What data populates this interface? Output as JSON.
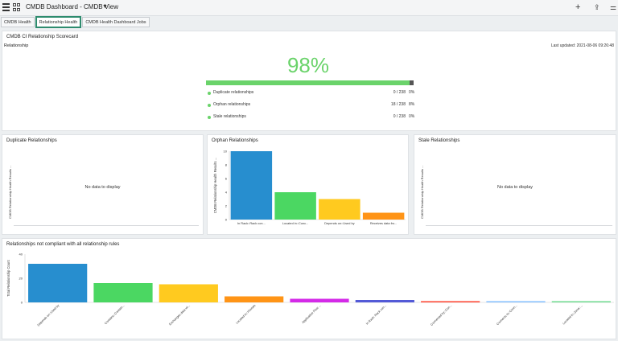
{
  "header": {
    "title": "CMDB Dashboard - CMDB View",
    "caret": "▼",
    "plus": "+",
    "share": "⇪",
    "filter": "⚌"
  },
  "tabs": [
    {
      "label": "CMDB Health"
    },
    {
      "label": "Relationship Health"
    },
    {
      "label": "CMDB Health Dashboard Jobs"
    }
  ],
  "scorecard": {
    "title": "CMDB CI Relationship Scorecard",
    "subtitle": "Relationship",
    "last_updated": "Last updated: 2021-08-06 09:26:48",
    "score": "98%",
    "score_fraction": 0.98,
    "metrics": [
      {
        "label": "Duplicate relationships",
        "count": "0 / 238",
        "pct": "0%"
      },
      {
        "label": "Orphan relationships",
        "count": "18 / 238",
        "pct": "8%"
      },
      {
        "label": "Stale relationships",
        "count": "0 / 238",
        "pct": "0%"
      }
    ]
  },
  "duplicate": {
    "title": "Duplicate Relationships",
    "ylabel": "CMDB Relationship Health Results ...",
    "no_data": "No data to display"
  },
  "stale": {
    "title": "Stale Relationships",
    "ylabel": "CMDB Relationship Health Results ...",
    "no_data": "No data to display"
  },
  "orphan": {
    "title": "Orphan Relationships"
  },
  "noncompliant": {
    "title": "Relationships not compliant with all relationship rules"
  },
  "chart_data": [
    {
      "type": "bar",
      "title": "Orphan Relationships",
      "ylabel": "CMDB Relationship Health Results ...",
      "categories": [
        "In Rack::Rack con...",
        "Located in::Conc...",
        "Depends on::Used by",
        "Receives data fro..."
      ],
      "values": [
        10,
        4,
        3,
        1
      ],
      "ylim": [
        0,
        10
      ],
      "yticks": [
        0,
        2,
        4,
        6,
        8,
        10
      ],
      "colors": [
        "#278ecf",
        "#4bd762",
        "#ffca1f",
        "#ff9416"
      ]
    },
    {
      "type": "bar",
      "title": "Relationships not compliant with all relationship rules",
      "ylabel": "Total Relationship Count",
      "categories": [
        "Depends on::Used by",
        "Contains::Contain...",
        "Exchanges data wi...",
        "Located in::Houses",
        "Applicative Flow ...",
        "In Rack::Rack con...",
        "Connected by::Con...",
        "Connects to::Conn...",
        "Located in::Zone::..."
      ],
      "values": [
        32,
        16,
        15,
        5,
        3,
        2,
        1,
        1,
        1
      ],
      "ylim": [
        0,
        40
      ],
      "yticks": [
        0,
        20,
        40
      ],
      "colors": [
        "#278ecf",
        "#4bd762",
        "#ffca1f",
        "#ff9416",
        "#d42ae8",
        "#535ad7",
        "#ff402c",
        "#83bfff",
        "#6edb8f"
      ]
    }
  ]
}
